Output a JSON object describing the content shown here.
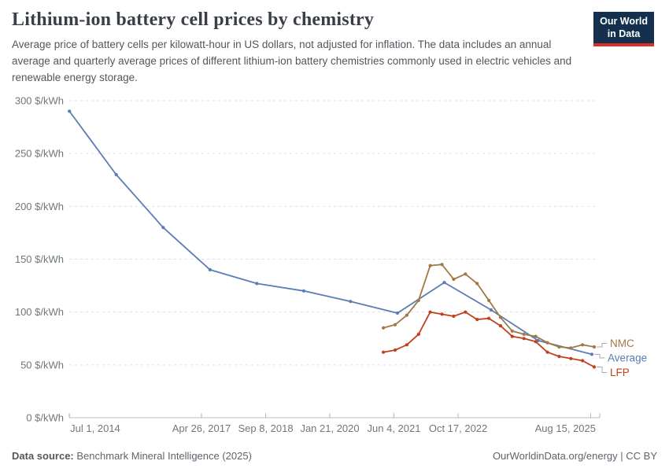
{
  "header": {
    "title": "Lithium-ion battery cell prices by chemistry",
    "subtitle": "Average price of battery cells per kilowatt-hour in US dollars, not adjusted for inflation. The data includes an annual average and quarterly average prices of different lithium-ion battery chemistries commonly used in electric vehicles and renewable energy storage."
  },
  "logo": {
    "line1": "Our World",
    "line2": "in Data",
    "bg_color": "#14304E",
    "bar_color": "#D93025"
  },
  "footer": {
    "source_label": "Data source:",
    "source_text": "Benchmark Mineral Intelligence (2025)",
    "right_text": "OurWorldinData.org/energy | CC BY"
  },
  "chart_data": {
    "type": "line",
    "title": "Lithium-ion battery cell prices by chemistry",
    "xlabel": "",
    "ylabel": "",
    "unit": "$/kWh",
    "ylim": [
      0,
      300
    ],
    "grid": "dashed-horizontal",
    "legend_position": "right-of-line-ends",
    "y_ticks": [
      {
        "value": 0,
        "label": "0 $/kWh"
      },
      {
        "value": 50,
        "label": "50 $/kWh"
      },
      {
        "value": 100,
        "label": "100 $/kWh"
      },
      {
        "value": 150,
        "label": "150 $/kWh"
      },
      {
        "value": 200,
        "label": "200 $/kWh"
      },
      {
        "value": 250,
        "label": "250 $/kWh"
      },
      {
        "value": 300,
        "label": "300 $/kWh"
      }
    ],
    "x_ticks": [
      {
        "label": "Jul 1, 2014",
        "year": 2014.5
      },
      {
        "label": "Apr 26, 2017",
        "year": 2017.318
      },
      {
        "label": "Sep 8, 2018",
        "year": 2018.688
      },
      {
        "label": "Jan 21, 2020",
        "year": 2020.057
      },
      {
        "label": "Jun 4, 2021",
        "year": 2021.425
      },
      {
        "label": "Oct 17, 2022",
        "year": 2022.795
      },
      {
        "label": "Aug 15, 2025",
        "year": 2025.622
      }
    ],
    "series": [
      {
        "name": "Average",
        "color": "#5B7CB5",
        "cadence": "annual",
        "x": [
          2014.5,
          2015.5,
          2016.5,
          2017.5,
          2018.5,
          2019.5,
          2020.5,
          2021.5,
          2022.5,
          2023.5,
          2024.5,
          2025.65
        ],
        "values": [
          290,
          230,
          180,
          140,
          127,
          120,
          110,
          99,
          128,
          102,
          73,
          60
        ]
      },
      {
        "name": "NMC",
        "color": "#A07845",
        "cadence": "quarterly",
        "x": [
          2021.2,
          2021.45,
          2021.7,
          2021.95,
          2022.2,
          2022.45,
          2022.7,
          2022.95,
          2023.2,
          2023.45,
          2023.7,
          2023.95,
          2024.2,
          2024.45,
          2024.7,
          2024.95,
          2025.2,
          2025.45,
          2025.7
        ],
        "values": [
          85,
          88,
          97,
          111,
          144,
          145,
          131,
          136,
          127,
          111,
          95,
          82,
          79,
          77,
          71,
          67,
          66,
          69,
          67
        ]
      },
      {
        "name": "LFP",
        "color": "#C0401C",
        "cadence": "quarterly",
        "x": [
          2021.2,
          2021.45,
          2021.7,
          2021.95,
          2022.2,
          2022.45,
          2022.7,
          2022.95,
          2023.2,
          2023.45,
          2023.7,
          2023.95,
          2024.2,
          2024.45,
          2024.7,
          2024.95,
          2025.2,
          2025.45,
          2025.7
        ],
        "values": [
          62,
          64,
          69,
          79,
          100,
          98,
          96,
          100,
          93,
          94,
          87,
          77,
          75,
          72,
          62,
          58,
          56,
          54,
          48
        ]
      }
    ],
    "legend_order": [
      "NMC",
      "Average",
      "LFP"
    ]
  },
  "colors": {
    "grid": "#dcdfe1",
    "axis": "#bcc2c6",
    "axis_tick": "#aab0b5",
    "tick_label": "#6f777d",
    "connector": "#a6acb1"
  }
}
